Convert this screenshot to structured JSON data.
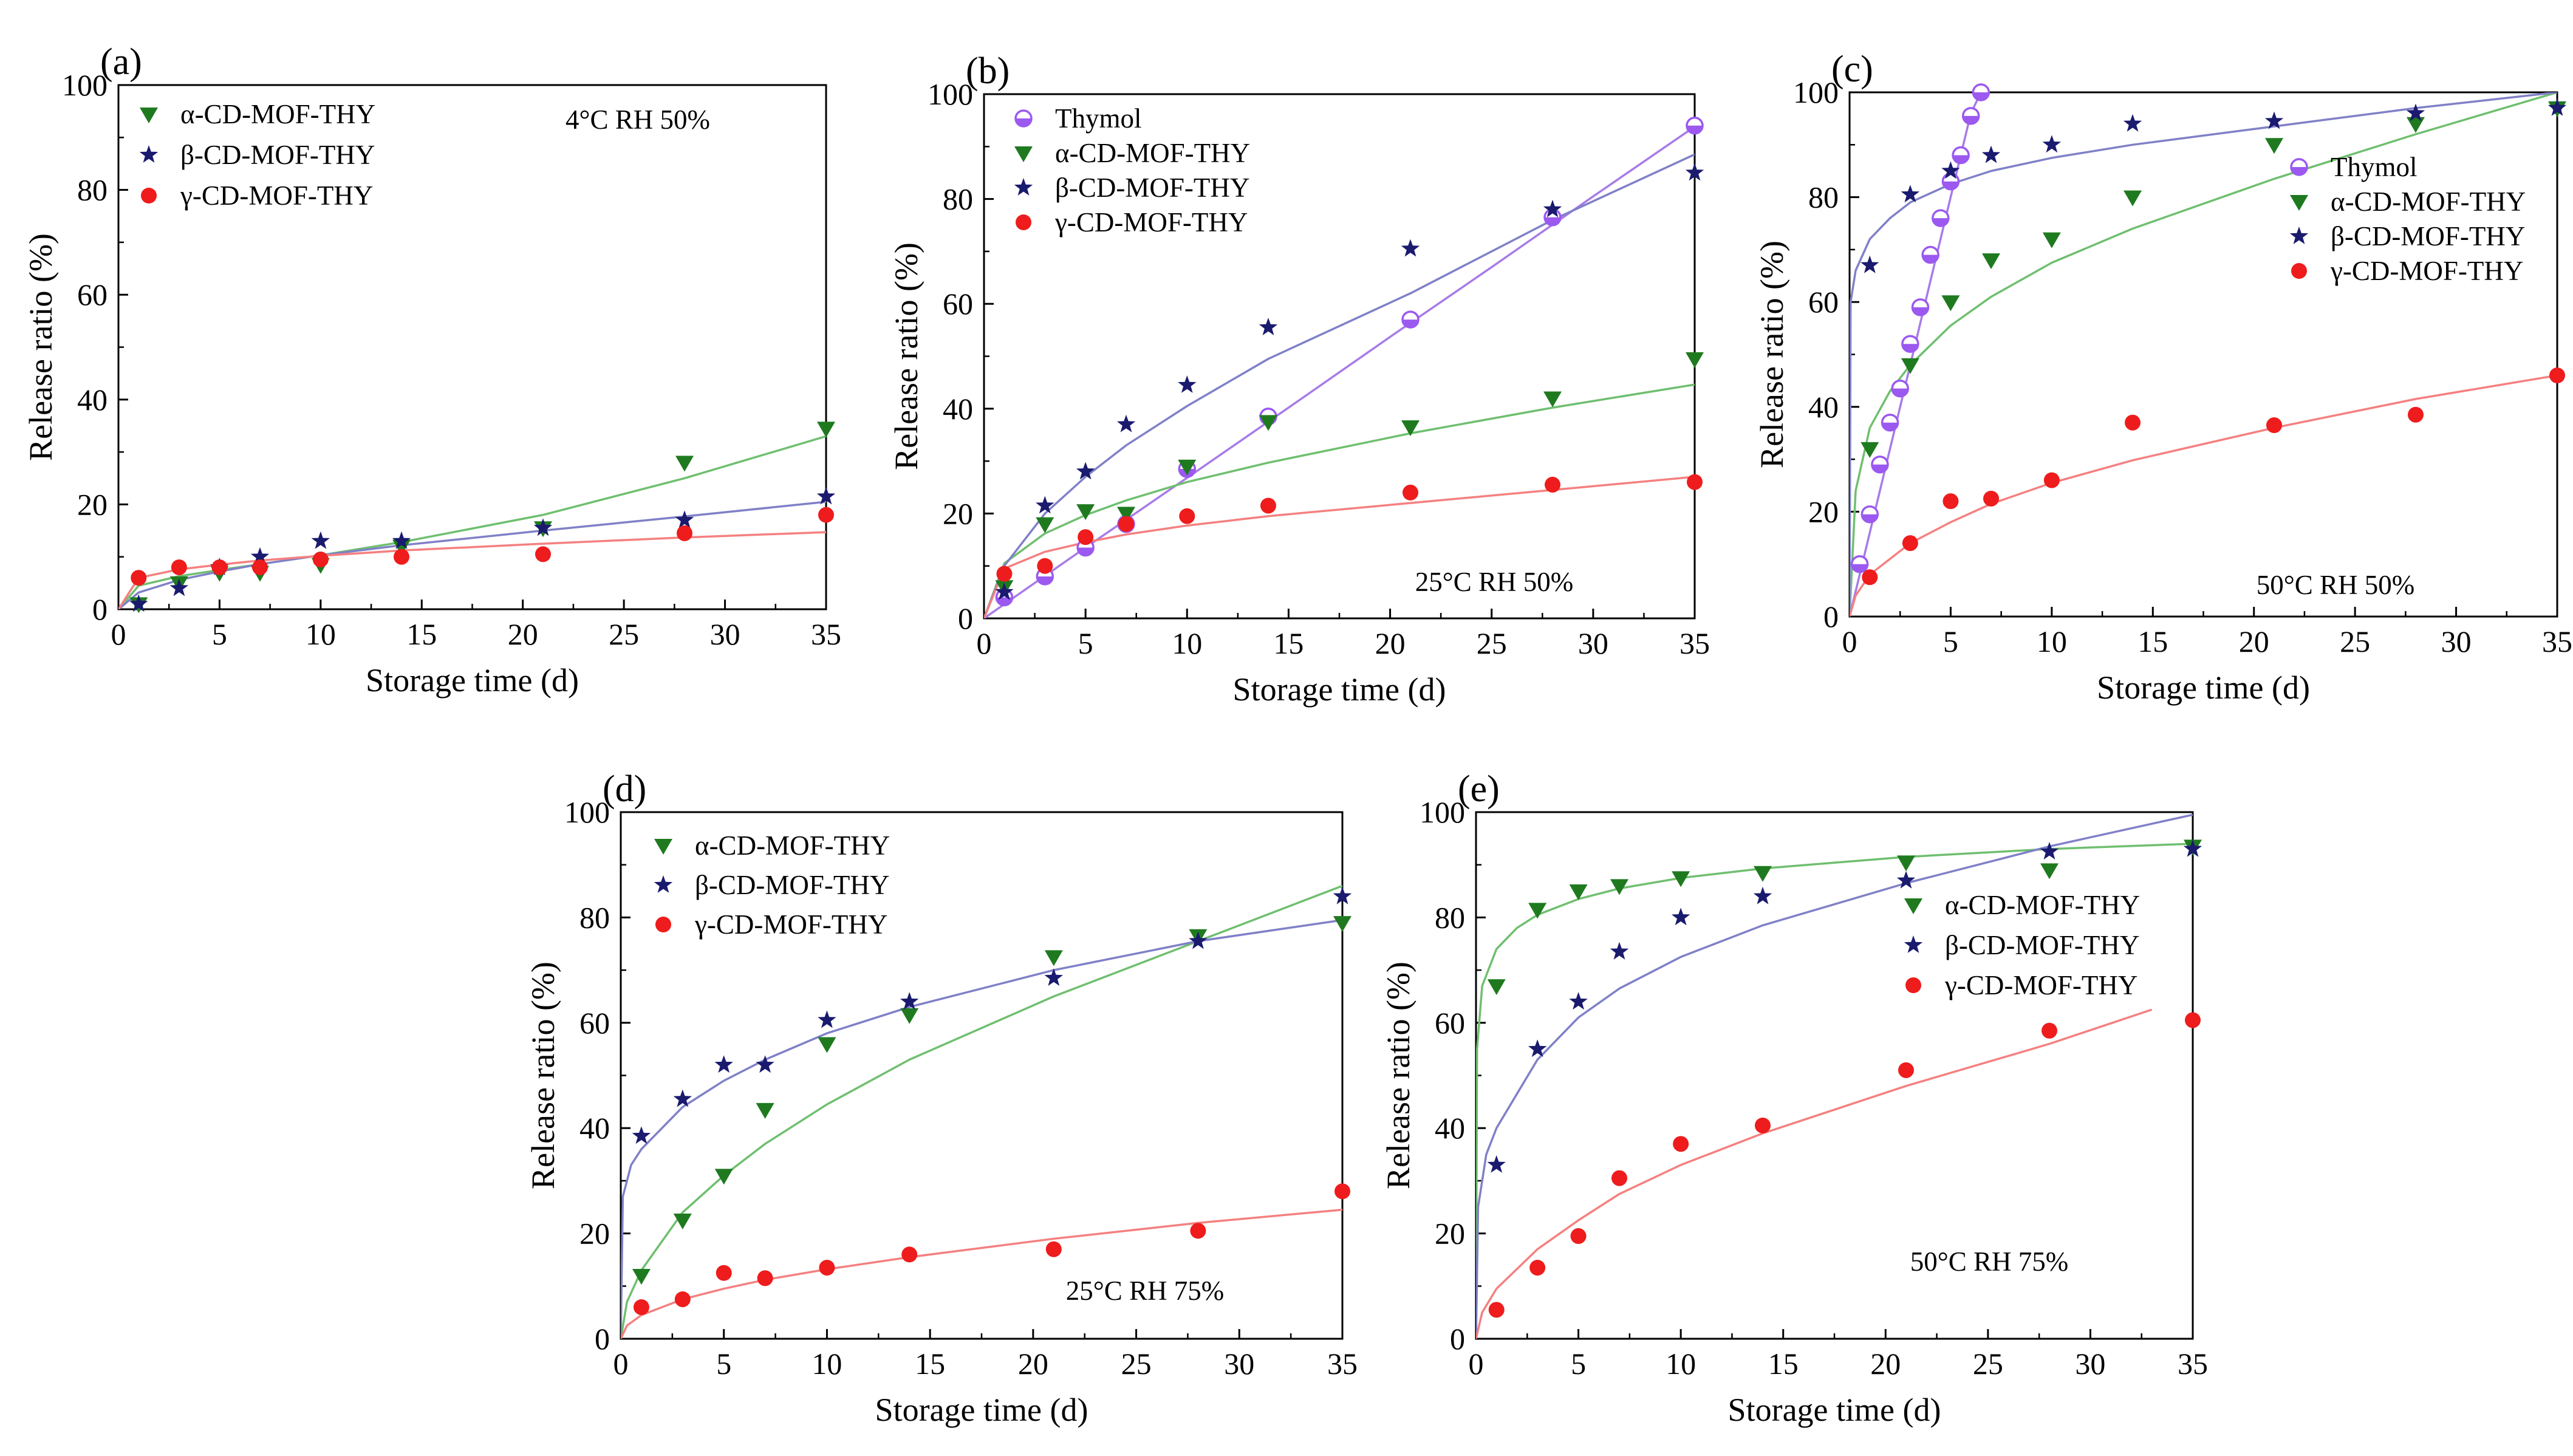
{
  "colors": {
    "thymol": "#9b59f0",
    "alpha": "#1f7a1f",
    "beta": "#1a1a6e",
    "gamma": "#ee1c1c",
    "fit_thymol": "#a77be8",
    "fit_alpha": "#6fbf6f",
    "fit_beta": "#8080c8",
    "fit_gamma": "#f58080"
  },
  "chart_data": [
    {
      "id": "a",
      "panel_label": "(a)",
      "type": "scatter",
      "condition": "4°C RH 50%",
      "xlabel": "Storage time (d)",
      "ylabel": "Release ratio (%)",
      "xlim": [
        0,
        35
      ],
      "ylim": [
        0,
        100
      ],
      "xticks": [
        0,
        5,
        10,
        15,
        20,
        25,
        30,
        35
      ],
      "yticks": [
        0,
        20,
        40,
        60,
        80,
        100
      ],
      "legend_position": "top-left",
      "series": [
        {
          "key": "alpha",
          "name": "α-CD-MOF-THY",
          "marker": "triangle-down",
          "x": [
            1,
            3,
            5,
            7,
            10,
            14,
            21,
            28,
            35
          ],
          "y": [
            1,
            5,
            7,
            7,
            8.5,
            12,
            15.5,
            28,
            34.5
          ],
          "fit_x": [
            0,
            1,
            3,
            5,
            7,
            10,
            14,
            21,
            28,
            35
          ],
          "fit_y": [
            0,
            4.5,
            6.3,
            7.5,
            8.6,
            10.3,
            12.8,
            18,
            25,
            33
          ]
        },
        {
          "key": "beta",
          "name": "β-CD-MOF-THY",
          "marker": "star",
          "x": [
            1,
            3,
            5,
            7,
            10,
            14,
            21,
            28,
            35
          ],
          "y": [
            1,
            4,
            8,
            10,
            13,
            13,
            15.5,
            17,
            21.5
          ],
          "fit_x": [
            0,
            1,
            3,
            5,
            7,
            10,
            14,
            21,
            28,
            35
          ],
          "fit_y": [
            0,
            3.2,
            5.6,
            7.2,
            8.6,
            10.3,
            12.2,
            15,
            17.7,
            20.5
          ]
        },
        {
          "key": "gamma",
          "name": "γ-CD-MOF-THY",
          "marker": "circle",
          "x": [
            1,
            3,
            5,
            7,
            10,
            14,
            21,
            28,
            35
          ],
          "y": [
            6,
            8,
            8,
            8,
            9.5,
            10,
            10.5,
            14.5,
            18
          ],
          "fit_x": [
            0,
            1,
            3,
            5,
            7,
            10,
            14,
            21,
            28,
            35
          ],
          "fit_y": [
            0,
            6,
            7.6,
            8.5,
            9.3,
            10.2,
            11.2,
            12.5,
            13.7,
            14.7
          ]
        }
      ]
    },
    {
      "id": "b",
      "panel_label": "(b)",
      "type": "scatter",
      "condition": "25°C RH 50%",
      "xlabel": "Storage time (d)",
      "ylabel": "Release ratio (%)",
      "xlim": [
        0,
        35
      ],
      "ylim": [
        0,
        100
      ],
      "xticks": [
        0,
        5,
        10,
        15,
        20,
        25,
        30,
        35
      ],
      "yticks": [
        0,
        20,
        40,
        60,
        80,
        100
      ],
      "legend_position": "top-left",
      "series": [
        {
          "key": "thymol",
          "name": "Thymol",
          "marker": "half-circle",
          "x": [
            1,
            3,
            5,
            7,
            10,
            14,
            21,
            28,
            35
          ],
          "y": [
            4,
            8,
            13.5,
            18,
            28.5,
            38.5,
            57,
            76.5,
            94
          ],
          "fit_x": [
            0,
            5,
            10,
            15,
            20,
            25,
            30,
            35
          ],
          "fit_y": [
            0,
            13.5,
            26.8,
            40.2,
            53.7,
            67,
            80.5,
            93.8
          ]
        },
        {
          "key": "alpha",
          "name": "α-CD-MOF-THY",
          "marker": "triangle-down",
          "x": [
            1,
            3,
            5,
            7,
            10,
            14,
            21,
            28,
            35
          ],
          "y": [
            6,
            18,
            20.5,
            20,
            29,
            37.5,
            36.5,
            42,
            49.5
          ],
          "fit_x": [
            0,
            1,
            3,
            5,
            7,
            10,
            14,
            21,
            28,
            35
          ],
          "fit_y": [
            0,
            10.5,
            16.2,
            19.7,
            22.5,
            26,
            29.7,
            35.3,
            40.2,
            44.6
          ]
        },
        {
          "key": "beta",
          "name": "β-CD-MOF-THY",
          "marker": "star",
          "x": [
            1,
            3,
            5,
            7,
            10,
            14,
            21,
            28,
            35
          ],
          "y": [
            5,
            21.5,
            28,
            37,
            44.5,
            55.5,
            70.5,
            78,
            85
          ],
          "fit_x": [
            0,
            1,
            3,
            5,
            7,
            10,
            14,
            21,
            28,
            35
          ],
          "fit_y": [
            0,
            10,
            20,
            27,
            33,
            40.5,
            49.5,
            62,
            76,
            88.5
          ]
        },
        {
          "key": "gamma",
          "name": "γ-CD-MOF-THY",
          "marker": "circle",
          "x": [
            1,
            3,
            5,
            7,
            10,
            14,
            21,
            28,
            35
          ],
          "y": [
            8.5,
            10,
            15.5,
            18,
            19.5,
            21.5,
            24,
            25.5,
            26
          ],
          "fit_x": [
            0,
            1,
            3,
            5,
            7,
            10,
            14,
            21,
            28,
            35
          ],
          "fit_y": [
            0,
            9.5,
            12.7,
            14.5,
            16,
            17.7,
            19.5,
            22,
            24.5,
            27
          ]
        }
      ]
    },
    {
      "id": "c",
      "panel_label": "(c)",
      "type": "scatter",
      "condition": "50°C RH 50%",
      "xlabel": "Storage time (d)",
      "ylabel": "Release ratio (%)",
      "xlim": [
        0,
        35
      ],
      "ylim": [
        0,
        100
      ],
      "xticks": [
        0,
        5,
        10,
        15,
        20,
        25,
        30,
        35
      ],
      "yticks": [
        0,
        20,
        40,
        60,
        80,
        100
      ],
      "legend_position": "right",
      "series": [
        {
          "key": "thymol",
          "name": "Thymol",
          "marker": "half-circle",
          "x": [
            0.5,
            1,
            1.5,
            2,
            2.5,
            3,
            3.5,
            4,
            4.5,
            5,
            5.5,
            6,
            6.5
          ],
          "y": [
            10,
            19.5,
            29,
            37,
            43.5,
            52,
            59,
            69,
            76,
            83,
            88,
            95.5,
            100
          ],
          "fit_x": [
            0,
            1,
            2,
            3,
            4,
            5,
            6,
            6.5
          ],
          "fit_y": [
            0,
            16,
            32,
            48,
            64,
            80,
            96,
            100
          ]
        },
        {
          "key": "alpha",
          "name": "α-CD-MOF-THY",
          "marker": "triangle-down",
          "x": [
            1,
            3,
            5,
            7,
            10,
            14,
            21,
            28,
            35
          ],
          "y": [
            32,
            48,
            60,
            68,
            72,
            80,
            90,
            94,
            97
          ],
          "fit_x": [
            0,
            0.3,
            1,
            2,
            3,
            5,
            7,
            10,
            14,
            21,
            28,
            35
          ],
          "fit_y": [
            0,
            24,
            36,
            43,
            48,
            55.5,
            61,
            67.5,
            74,
            83.5,
            92,
            100
          ]
        },
        {
          "key": "beta",
          "name": "β-CD-MOF-THY",
          "marker": "star",
          "x": [
            1,
            3,
            5,
            7,
            10,
            14,
            21,
            28,
            35
          ],
          "y": [
            67,
            80.5,
            85,
            88,
            90,
            94,
            94.5,
            96,
            97
          ],
          "fit_x": [
            0,
            0.05,
            0.3,
            1,
            2,
            3,
            5,
            7,
            10,
            14,
            21,
            28,
            35
          ],
          "fit_y": [
            0,
            60,
            66,
            72,
            76,
            79,
            82.5,
            85,
            87.5,
            90,
            93.5,
            97,
            100
          ]
        },
        {
          "key": "gamma",
          "name": "γ-CD-MOF-THY",
          "marker": "circle",
          "x": [
            1,
            3,
            5,
            7,
            10,
            14,
            21,
            28,
            35
          ],
          "y": [
            7.5,
            14,
            22,
            22.5,
            26,
            37,
            36.5,
            38.5,
            46
          ],
          "fit_x": [
            0,
            0.3,
            1,
            3,
            5,
            7,
            10,
            14,
            21,
            28,
            35
          ],
          "fit_y": [
            0,
            4,
            8,
            14,
            18,
            21.5,
            25.5,
            29.8,
            36,
            41.5,
            46
          ]
        }
      ]
    },
    {
      "id": "d",
      "panel_label": "(d)",
      "type": "scatter",
      "condition": "25°C RH 75%",
      "xlabel": "Storage time (d)",
      "ylabel": "Release ratio (%)",
      "xlim": [
        0,
        35
      ],
      "ylim": [
        0,
        100
      ],
      "xticks": [
        0,
        5,
        10,
        15,
        20,
        25,
        30,
        35
      ],
      "yticks": [
        0,
        20,
        40,
        60,
        80,
        100
      ],
      "legend_position": "top-left",
      "series": [
        {
          "key": "alpha",
          "name": "α-CD-MOF-THY",
          "marker": "triangle-down",
          "x": [
            1,
            3,
            5,
            7,
            10,
            14,
            21,
            28,
            35
          ],
          "y": [
            12,
            22.5,
            31,
            43.5,
            56,
            61.5,
            72.5,
            76.5,
            79
          ],
          "fit_x": [
            0,
            0.3,
            1,
            3,
            5,
            7,
            10,
            14,
            21,
            28,
            35
          ],
          "fit_y": [
            0,
            7,
            13,
            24,
            31,
            37,
            44.5,
            53,
            65,
            75.5,
            86
          ]
        },
        {
          "key": "beta",
          "name": "β-CD-MOF-THY",
          "marker": "star",
          "x": [
            1,
            3,
            5,
            7,
            10,
            14,
            21,
            28,
            35
          ],
          "y": [
            38.5,
            45.5,
            52,
            52,
            60.5,
            64,
            68.5,
            75.5,
            84
          ],
          "fit_x": [
            0,
            0.1,
            0.5,
            1,
            3,
            5,
            7,
            10,
            14,
            21,
            28,
            35
          ],
          "fit_y": [
            0,
            27,
            33,
            36,
            44,
            49,
            53,
            58,
            63,
            70,
            75.5,
            79.5
          ]
        },
        {
          "key": "gamma",
          "name": "γ-CD-MOF-THY",
          "marker": "circle",
          "x": [
            1,
            3,
            5,
            7,
            10,
            14,
            21,
            28,
            35
          ],
          "y": [
            6,
            7.5,
            12.5,
            11.5,
            13.5,
            16,
            17,
            20.5,
            28
          ],
          "fit_x": [
            0,
            0.3,
            1,
            3,
            5,
            7,
            10,
            14,
            21,
            28,
            35
          ],
          "fit_y": [
            0,
            2.5,
            4.5,
            7.5,
            9.5,
            11.2,
            13.2,
            15.5,
            19,
            22,
            24.5
          ]
        }
      ]
    },
    {
      "id": "e",
      "panel_label": "(e)",
      "type": "scatter",
      "condition": "50°C RH 75%",
      "xlabel": "Storage time (d)",
      "ylabel": "Release ratio (%)",
      "xlim": [
        0,
        35
      ],
      "ylim": [
        0,
        100
      ],
      "xticks": [
        0,
        5,
        10,
        15,
        20,
        25,
        30,
        35
      ],
      "yticks": [
        0,
        20,
        40,
        60,
        80,
        100
      ],
      "legend_position": "right",
      "series": [
        {
          "key": "alpha",
          "name": "α-CD-MOF-THY",
          "marker": "triangle-down",
          "x": [
            1,
            3,
            5,
            7,
            10,
            14,
            21,
            28,
            35
          ],
          "y": [
            67,
            81.5,
            85,
            86,
            87.5,
            88.5,
            90.5,
            89,
            93.5
          ],
          "fit_x": [
            0,
            0.05,
            0.3,
            1,
            2,
            3,
            5,
            7,
            10,
            14,
            21,
            28,
            35
          ],
          "fit_y": [
            0,
            55,
            67,
            74,
            78,
            80.5,
            83.5,
            85.5,
            87.5,
            89.3,
            91.5,
            93,
            94
          ]
        },
        {
          "key": "beta",
          "name": "β-CD-MOF-THY",
          "marker": "star",
          "x": [
            1,
            3,
            5,
            7,
            10,
            14,
            21,
            28,
            35
          ],
          "y": [
            33,
            55,
            64,
            73.5,
            80,
            84,
            87,
            92.5,
            93
          ],
          "fit_x": [
            0,
            0.1,
            0.5,
            1,
            3,
            5,
            7,
            10,
            14,
            21,
            28,
            35
          ],
          "fit_y": [
            0,
            25,
            35,
            40,
            53,
            61,
            66.5,
            72.5,
            78.5,
            86.5,
            93.5,
            99.5
          ]
        },
        {
          "key": "gamma",
          "name": "γ-CD-MOF-THY",
          "marker": "circle",
          "x": [
            1,
            3,
            5,
            7,
            10,
            14,
            21,
            28,
            35
          ],
          "y": [
            5.5,
            13.5,
            19.5,
            30.5,
            37,
            40.5,
            51,
            58.5,
            60.5
          ],
          "fit_x": [
            0,
            0.3,
            1,
            3,
            5,
            7,
            10,
            14,
            21,
            28,
            33
          ],
          "fit_y": [
            0,
            5,
            9.5,
            17,
            22.5,
            27.5,
            33,
            39,
            48,
            56,
            62.5
          ]
        }
      ]
    }
  ]
}
